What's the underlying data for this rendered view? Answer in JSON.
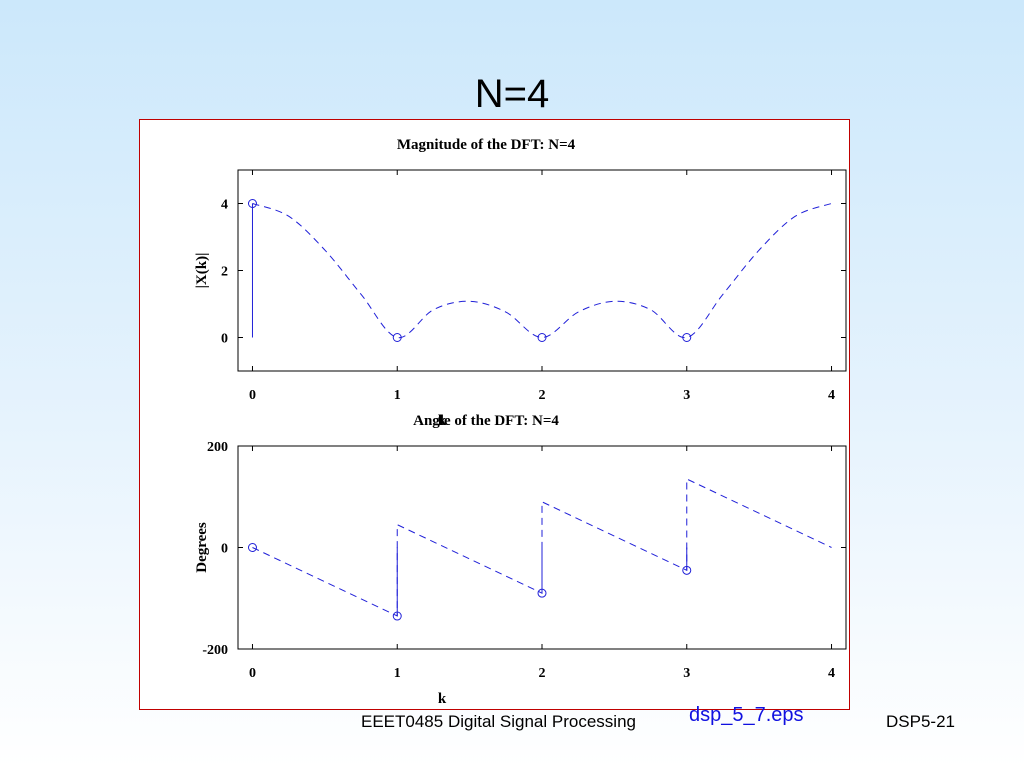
{
  "slide": {
    "title": "N=4",
    "footer_course": "EEET0485 Digital Signal Processing",
    "footer_file": "dsp_5_7.eps",
    "footer_page": "DSP5-21"
  },
  "colors": {
    "series": "#2020d8",
    "frame_border": "#c00000"
  },
  "chart_data": [
    {
      "type": "line",
      "title": "Magnitude of the DFT: N=4",
      "xlabel": "k",
      "ylabel": "|X(k)|",
      "xlim": [
        -0.1,
        4.1
      ],
      "ylim": [
        -1,
        5
      ],
      "xticks": [
        "0",
        "1",
        "2",
        "3",
        "4"
      ],
      "yticks": [
        "0",
        "2",
        "4"
      ],
      "grid": false,
      "stems": {
        "x": [
          0,
          1,
          2,
          3
        ],
        "y": [
          4,
          0,
          0,
          0
        ]
      },
      "envelope": {
        "style": "dashed",
        "x": [
          0,
          0.25,
          0.5,
          0.75,
          1,
          1.25,
          1.5,
          1.75,
          2,
          2.25,
          2.5,
          2.75,
          3,
          3.25,
          3.5,
          3.75,
          4
        ],
        "y": [
          4,
          3.62,
          2.61,
          1.29,
          0,
          0.83,
          1.08,
          0.76,
          0,
          0.76,
          1.08,
          0.83,
          0,
          1.29,
          2.61,
          3.62,
          4
        ]
      }
    },
    {
      "type": "line",
      "title": "Angle of the DFT: N=4",
      "xlabel": "k",
      "ylabel": "Degrees",
      "xlim": [
        -0.1,
        4.1
      ],
      "ylim": [
        -200,
        200
      ],
      "xticks": [
        "0",
        "1",
        "2",
        "3",
        "4"
      ],
      "yticks": [
        "-200",
        "0",
        "200"
      ],
      "grid": false,
      "stems": {
        "x": [
          0,
          1,
          2,
          3
        ],
        "y": [
          0,
          -135,
          -90,
          -45
        ]
      },
      "envelope": {
        "style": "dashed",
        "x": [
          0,
          1,
          1,
          2,
          2,
          3,
          3,
          4
        ],
        "y": [
          0,
          -135,
          45,
          -90,
          90,
          -45,
          135,
          0
        ]
      }
    }
  ]
}
